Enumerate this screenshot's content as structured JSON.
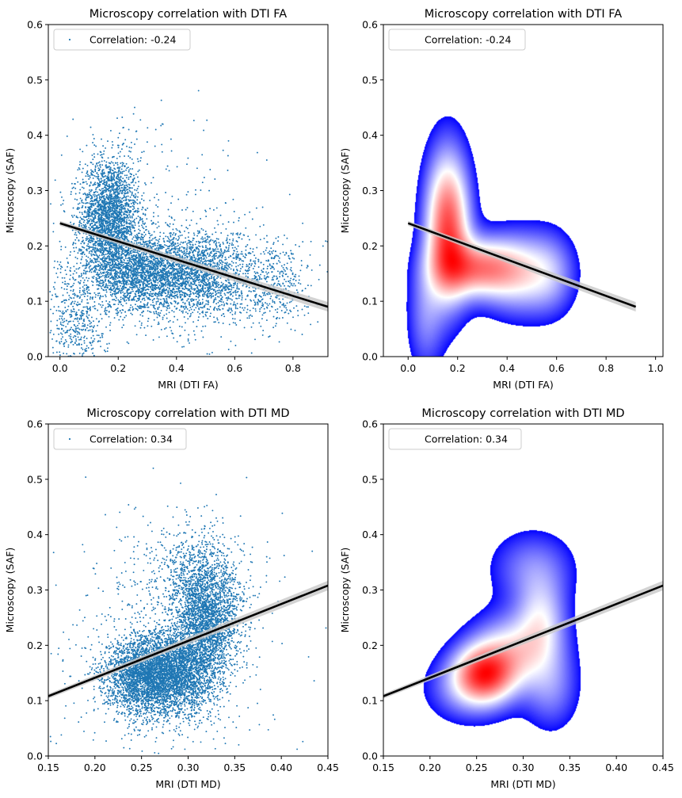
{
  "chart_data": [
    {
      "type": "scatter",
      "title": "Microscopy correlation with DTI FA",
      "xlabel": "MRI (DTI FA)",
      "ylabel": "Microscopy (SAF)",
      "xlim": [
        -0.04,
        0.92
      ],
      "ylim": [
        0,
        0.6
      ],
      "xticks": [
        "0.0",
        "0.2",
        "0.4",
        "0.6",
        "0.8"
      ],
      "yticks": [
        "0.0",
        "0.1",
        "0.2",
        "0.3",
        "0.4",
        "0.5",
        "0.6"
      ],
      "legend": {
        "label": "Correlation: -0.24",
        "placement": "top-left"
      },
      "correlation": -0.24,
      "regression": {
        "x": [
          0.0,
          0.92
        ],
        "y": [
          0.241,
          0.09
        ]
      },
      "point_color": "#1f77b4",
      "clusters": [
        {
          "mx": 0.17,
          "my": 0.25,
          "sx": 0.05,
          "sy": 0.055,
          "n": 2600
        },
        {
          "mx": 0.3,
          "my": 0.15,
          "sx": 0.1,
          "sy": 0.035,
          "n": 2600
        },
        {
          "mx": 0.5,
          "my": 0.15,
          "sx": 0.08,
          "sy": 0.04,
          "n": 1300
        },
        {
          "mx": 0.72,
          "my": 0.13,
          "sx": 0.07,
          "sy": 0.04,
          "n": 500
        },
        {
          "mx": 0.06,
          "my": 0.06,
          "sx": 0.05,
          "sy": 0.05,
          "n": 450
        },
        {
          "mx": 0.3,
          "my": 0.2,
          "sx": 0.2,
          "sy": 0.12,
          "n": 400
        }
      ]
    },
    {
      "type": "heatmap",
      "subtype": "kde",
      "title": "Microscopy correlation with DTI FA",
      "xlabel": "MRI (DTI FA)",
      "ylabel": "Microscopy (SAF)",
      "xlim": [
        -0.1,
        1.03
      ],
      "ylim": [
        0,
        0.6
      ],
      "xticks": [
        "0.0",
        "0.2",
        "0.4",
        "0.6",
        "0.8",
        "1.0"
      ],
      "yticks": [
        "0.0",
        "0.1",
        "0.2",
        "0.3",
        "0.4",
        "0.5",
        "0.6"
      ],
      "legend": {
        "label": "Correlation: -0.24",
        "placement": "top-left"
      },
      "correlation": -0.24,
      "regression": {
        "x": [
          0.0,
          0.92
        ],
        "y": [
          0.241,
          0.09
        ]
      },
      "colormap": [
        "#0000ff",
        "#ffffff",
        "#ff0000"
      ],
      "blobs": [
        {
          "cx": 0.16,
          "cy": 0.235,
          "rx": 0.06,
          "ry": 0.09,
          "w": 1.0
        },
        {
          "cx": 0.28,
          "cy": 0.16,
          "rx": 0.11,
          "ry": 0.035,
          "w": 0.75
        },
        {
          "cx": 0.45,
          "cy": 0.15,
          "rx": 0.1,
          "ry": 0.05,
          "w": 0.45
        },
        {
          "cx": 0.58,
          "cy": 0.15,
          "rx": 0.07,
          "ry": 0.05,
          "w": 0.25
        },
        {
          "cx": 0.07,
          "cy": 0.07,
          "rx": 0.05,
          "ry": 0.07,
          "w": 0.25
        }
      ]
    },
    {
      "type": "scatter",
      "title": "Microscopy correlation with DTI MD",
      "xlabel": "MRI (DTI MD)",
      "ylabel": "Microscopy (SAF)",
      "xlim": [
        0.15,
        0.45
      ],
      "ylim": [
        0,
        0.6
      ],
      "xticks": [
        "0.15",
        "0.20",
        "0.25",
        "0.30",
        "0.35",
        "0.40",
        "0.45"
      ],
      "yticks": [
        "0.0",
        "0.1",
        "0.2",
        "0.3",
        "0.4",
        "0.5",
        "0.6"
      ],
      "legend": {
        "label": "Correlation: 0.34",
        "placement": "top-left"
      },
      "correlation": 0.34,
      "regression": {
        "x": [
          0.15,
          0.45
        ],
        "y": [
          0.108,
          0.308
        ]
      },
      "point_color": "#1f77b4",
      "clusters": [
        {
          "mx": 0.255,
          "my": 0.145,
          "sx": 0.022,
          "sy": 0.035,
          "n": 3000
        },
        {
          "mx": 0.29,
          "my": 0.15,
          "sx": 0.02,
          "sy": 0.04,
          "n": 2000
        },
        {
          "mx": 0.32,
          "my": 0.25,
          "sx": 0.018,
          "sy": 0.06,
          "n": 2600
        },
        {
          "mx": 0.3,
          "my": 0.32,
          "sx": 0.03,
          "sy": 0.05,
          "n": 500
        },
        {
          "mx": 0.27,
          "my": 0.2,
          "sx": 0.07,
          "sy": 0.12,
          "n": 450
        }
      ]
    },
    {
      "type": "heatmap",
      "subtype": "kde",
      "title": "Microscopy correlation with DTI MD",
      "xlabel": "MRI (DTI MD)",
      "ylabel": "Microscopy (SAF)",
      "xlim": [
        0.15,
        0.45
      ],
      "ylim": [
        0,
        0.6
      ],
      "xticks": [
        "0.15",
        "0.20",
        "0.25",
        "0.30",
        "0.35",
        "0.40",
        "0.45"
      ],
      "yticks": [
        "0.0",
        "0.1",
        "0.2",
        "0.3",
        "0.4",
        "0.5",
        "0.6"
      ],
      "legend": {
        "label": "Correlation: 0.34",
        "placement": "top-left"
      },
      "correlation": 0.34,
      "regression": {
        "x": [
          0.15,
          0.45
        ],
        "y": [
          0.108,
          0.308
        ]
      },
      "colormap": [
        "#0000ff",
        "#ffffff",
        "#ff0000"
      ],
      "blobs": [
        {
          "cx": 0.258,
          "cy": 0.148,
          "rx": 0.022,
          "ry": 0.035,
          "w": 1.0
        },
        {
          "cx": 0.29,
          "cy": 0.19,
          "rx": 0.03,
          "ry": 0.045,
          "w": 0.6
        },
        {
          "cx": 0.32,
          "cy": 0.25,
          "rx": 0.018,
          "ry": 0.05,
          "w": 0.45
        },
        {
          "cx": 0.31,
          "cy": 0.34,
          "rx": 0.03,
          "ry": 0.045,
          "w": 0.3
        },
        {
          "cx": 0.24,
          "cy": 0.12,
          "rx": 0.03,
          "ry": 0.04,
          "w": 0.3
        },
        {
          "cx": 0.33,
          "cy": 0.12,
          "rx": 0.02,
          "ry": 0.05,
          "w": 0.3
        }
      ]
    }
  ]
}
